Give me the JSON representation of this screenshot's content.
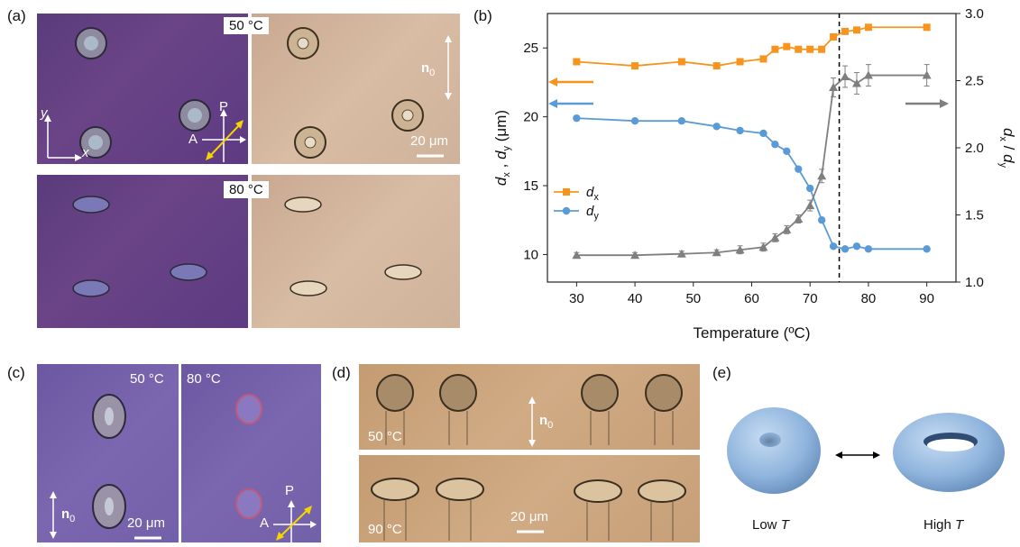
{
  "panel_labels": {
    "a": "(a)",
    "b": "(b)",
    "c": "(c)",
    "d": "(d)",
    "e": "(e)"
  },
  "panel_a": {
    "temp_top": "50 °C",
    "temp_bottom": "80 °C",
    "director": "n",
    "director_sub": "0",
    "scale_bar": "20 μm",
    "axis_x": "x",
    "axis_y": "y",
    "polarizer": "P",
    "analyzer": "A"
  },
  "panel_c": {
    "temp_left": "50 °C",
    "temp_right": "80 °C",
    "director": "n",
    "director_sub": "0",
    "scale_bar": "20 μm",
    "polarizer": "P",
    "analyzer": "A"
  },
  "panel_d": {
    "temp_top": "50 °C",
    "temp_bottom": "90 °C",
    "director": "n",
    "director_sub": "0",
    "scale_bar": "20 μm"
  },
  "panel_e": {
    "label_low": "Low ",
    "label_low_T": "T",
    "label_high": "High ",
    "label_high_T": "T"
  },
  "colors": {
    "dx": "#f7941d",
    "dy": "#5b9bd5",
    "ratio": "#7f7f7f"
  },
  "chart_data": {
    "type": "line",
    "xlabel": "Temperature (ºC)",
    "ylabel_left": "dx , dy (μm)",
    "ylabel_right": "dx / dy",
    "xlim": [
      25,
      95
    ],
    "ylim_left": [
      8,
      27.5
    ],
    "ylim_right": [
      1.0,
      3.0
    ],
    "x_ticks": [
      30,
      40,
      50,
      60,
      70,
      80,
      90
    ],
    "y_left_ticks": [
      10,
      15,
      20,
      25
    ],
    "y_right_ticks": [
      "1.0",
      "1.5",
      "2.0",
      "2.5",
      "3.0"
    ],
    "legend_position": "center-left",
    "vertical_line_x": 75,
    "series": [
      {
        "name": "dx",
        "axis": "left",
        "marker": "square",
        "x": [
          30,
          40,
          48,
          54,
          58,
          62,
          64,
          66,
          68,
          70,
          72,
          74,
          76,
          78,
          80,
          90
        ],
        "y": [
          24.0,
          23.7,
          24.0,
          23.7,
          24.0,
          24.2,
          24.9,
          25.1,
          24.9,
          24.9,
          24.9,
          25.8,
          26.2,
          26.3,
          26.5,
          26.5
        ]
      },
      {
        "name": "dy",
        "axis": "left",
        "marker": "circle",
        "x": [
          30,
          40,
          48,
          54,
          58,
          62,
          64,
          66,
          68,
          70,
          72,
          74,
          76,
          78,
          80,
          90
        ],
        "y": [
          19.9,
          19.7,
          19.7,
          19.3,
          19.0,
          18.8,
          18.0,
          17.5,
          16.2,
          14.8,
          12.5,
          10.6,
          10.4,
          10.6,
          10.4,
          10.4
        ]
      },
      {
        "name": "dx/dy",
        "axis": "right",
        "marker": "triangle",
        "x": [
          30,
          40,
          48,
          54,
          58,
          62,
          64,
          66,
          68,
          70,
          72,
          74,
          76,
          78,
          80,
          90
        ],
        "y": [
          1.2,
          1.2,
          1.21,
          1.22,
          1.24,
          1.26,
          1.33,
          1.39,
          1.47,
          1.57,
          1.79,
          2.45,
          2.53,
          2.48,
          2.54,
          2.54
        ],
        "err": [
          0.02,
          0.02,
          0.02,
          0.02,
          0.03,
          0.03,
          0.03,
          0.03,
          0.03,
          0.04,
          0.05,
          0.07,
          0.08,
          0.08,
          0.08,
          0.08
        ]
      }
    ]
  }
}
